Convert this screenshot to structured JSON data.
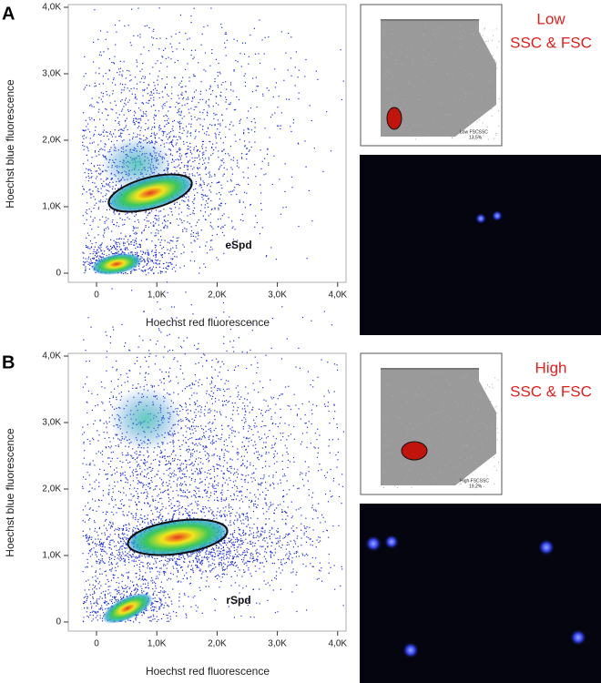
{
  "panels": [
    {
      "label": "A",
      "y_axis_title": "Hoechst blue fluorescence",
      "x_axis_title": "Hoechst red fluorescence",
      "yticks": [
        0,
        {
          "value": 1000,
          "label": "1,0K"
        },
        {
          "value": 2000,
          "label": "2,0K"
        },
        {
          "value": 3000,
          "label": "3,0K"
        },
        {
          "value": 4000,
          "label": "4,0K"
        }
      ],
      "xticks": [
        0,
        {
          "value": 1000,
          "label": "1,0K"
        },
        {
          "value": 2000,
          "label": "2,0K"
        },
        {
          "value": 3000,
          "label": "3,0K"
        },
        {
          "value": 4000,
          "label": "4,0K"
        }
      ],
      "gate_label": "eSpd",
      "inset_gate_label": "Low FSCSSC",
      "inset_gate_percent": "13,5%",
      "side_text": [
        "Low",
        "SSC & FSC"
      ]
    },
    {
      "label": "B",
      "y_axis_title": "Hoechst blue fluorescence",
      "x_axis_title": "Hoechst red fluorescence",
      "yticks": [
        0,
        {
          "value": 1000,
          "label": "1,0K"
        },
        {
          "value": 2000,
          "label": "2,0K"
        },
        {
          "value": 3000,
          "label": "3,0K"
        },
        {
          "value": 4000,
          "label": "4,0K"
        }
      ],
      "xticks": [
        0,
        {
          "value": 1000,
          "label": "1,0K"
        },
        {
          "value": 2000,
          "label": "2,0K"
        },
        {
          "value": 3000,
          "label": "3,0K"
        },
        {
          "value": 4000,
          "label": "4,0K"
        }
      ],
      "gate_label": "rSpd",
      "inset_gate_label": "High FSCSSC",
      "inset_gate_percent": "19,2%",
      "side_text": [
        "High",
        "SSC & FSC"
      ]
    }
  ]
}
